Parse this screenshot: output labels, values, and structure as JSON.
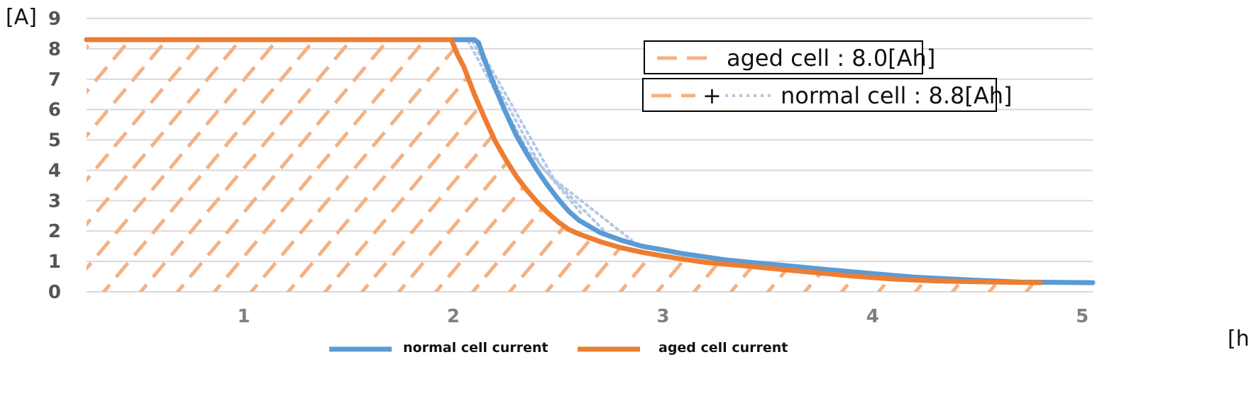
{
  "chart_data": {
    "type": "line",
    "y_unit_label": "[A]",
    "x_unit_label": "[h]",
    "xlim": [
      0.25,
      5.05
    ],
    "ylim": [
      0,
      9
    ],
    "x_ticks": [
      1,
      2,
      3,
      4,
      5
    ],
    "x_tick_labels": [
      "1",
      "2",
      "3",
      "4",
      "5"
    ],
    "y_ticks": [
      0,
      1,
      2,
      3,
      4,
      5,
      6,
      7,
      8,
      9
    ],
    "y_tick_labels": [
      "0",
      "1",
      "2",
      "3",
      "4",
      "5",
      "6",
      "7",
      "8",
      "9"
    ],
    "grid": "horizontal",
    "legend_position": "bottom",
    "series": [
      {
        "name": "normal cell current",
        "color": "#5B9BD5",
        "x": [
          0.25,
          2.1,
          2.12,
          2.15,
          2.2,
          2.25,
          2.3,
          2.35,
          2.4,
          2.45,
          2.5,
          2.55,
          2.6,
          2.7,
          2.8,
          2.9,
          3.0,
          3.1,
          3.2,
          3.3,
          3.45,
          3.6,
          3.8,
          4.0,
          4.2,
          4.5,
          4.7,
          5.05
        ],
        "values": [
          8.3,
          8.3,
          8.2,
          7.6,
          6.7,
          5.9,
          5.15,
          4.55,
          4.0,
          3.5,
          3.05,
          2.65,
          2.35,
          1.95,
          1.7,
          1.5,
          1.38,
          1.25,
          1.15,
          1.05,
          0.95,
          0.85,
          0.72,
          0.6,
          0.48,
          0.38,
          0.32,
          0.3
        ]
      },
      {
        "name": "aged cell current",
        "color": "#ED7D31",
        "x": [
          0.25,
          1.99,
          2.02,
          2.05,
          2.1,
          2.15,
          2.2,
          2.25,
          2.3,
          2.35,
          2.4,
          2.45,
          2.5,
          2.55,
          2.6,
          2.7,
          2.8,
          2.9,
          3.0,
          3.1,
          3.2,
          3.35,
          3.5,
          3.7,
          3.9,
          4.1,
          4.3,
          4.5,
          4.8
        ],
        "values": [
          8.3,
          8.3,
          7.8,
          7.4,
          6.5,
          5.7,
          4.95,
          4.35,
          3.8,
          3.35,
          2.95,
          2.6,
          2.3,
          2.05,
          1.9,
          1.65,
          1.45,
          1.3,
          1.18,
          1.07,
          0.97,
          0.88,
          0.78,
          0.65,
          0.52,
          0.42,
          0.36,
          0.33,
          0.3
        ]
      }
    ]
  },
  "annotations": {
    "aged_label": "aged cell : 8.0[Ah]",
    "normal_plus": "+",
    "normal_label": "normal cell : 8.8[Ah]",
    "hatch_color": "#F4B183",
    "dotted_color": "#B4C7E7"
  }
}
